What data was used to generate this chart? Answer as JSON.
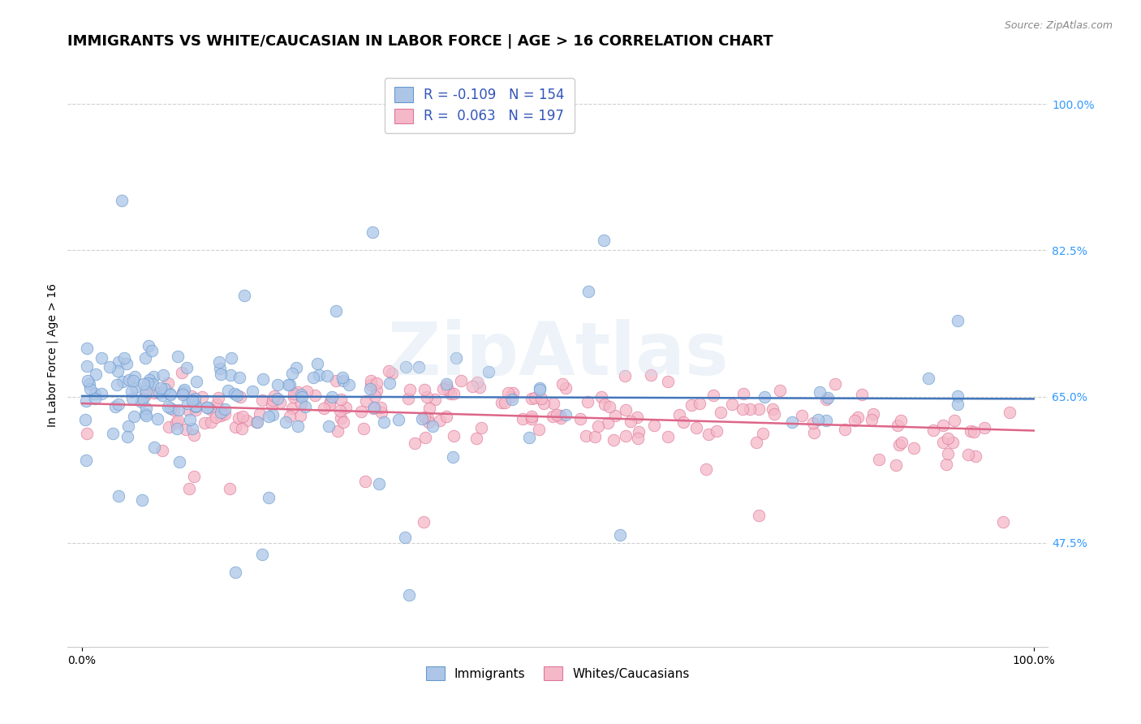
{
  "title": "IMMIGRANTS VS WHITE/CAUCASIAN IN LABOR FORCE | AGE > 16 CORRELATION CHART",
  "source": "Source: ZipAtlas.com",
  "ylabel": "In Labor Force | Age > 16",
  "xlim": [
    0.0,
    1.0
  ],
  "ylim": [
    0.35,
    1.05
  ],
  "x_tick_labels": [
    "0.0%",
    "100.0%"
  ],
  "y_tick_labels": [
    "47.5%",
    "65.0%",
    "82.5%",
    "100.0%"
  ],
  "y_tick_positions": [
    0.475,
    0.65,
    0.825,
    1.0
  ],
  "immigrants_color": "#adc6e8",
  "immigrants_edge": "#6699cc",
  "whites_color": "#f5b8c8",
  "whites_edge": "#dd7799",
  "immigrants_R": -0.109,
  "immigrants_N": 154,
  "whites_R": 0.063,
  "whites_N": 197,
  "immigrants_line_color": "#4477bb",
  "whites_line_color": "#dd6688",
  "background_color": "#ffffff",
  "grid_color": "#cccccc",
  "watermark": "ZipAtlas",
  "title_fontsize": 13,
  "axis_label_fontsize": 10,
  "tick_fontsize": 10,
  "legend_fontsize": 12
}
